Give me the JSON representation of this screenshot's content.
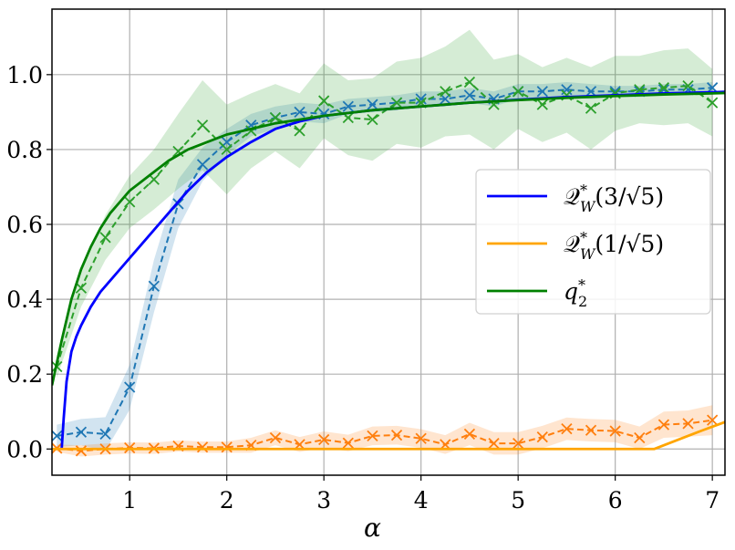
{
  "chart_data": {
    "type": "line",
    "title": "",
    "xlabel": "α",
    "ylabel": "",
    "xlim": [
      0.2,
      7.13
    ],
    "ylim": [
      -0.07,
      1.175
    ],
    "grid": true,
    "xticks": [
      1,
      2,
      3,
      4,
      5,
      6,
      7
    ],
    "xtick_labels": [
      "1",
      "2",
      "3",
      "4",
      "5",
      "6",
      "7"
    ],
    "yticks": [
      0.0,
      0.2,
      0.4,
      0.6,
      0.8,
      1.0
    ],
    "ytick_labels": [
      "0.0",
      "0.2",
      "0.4",
      "0.6",
      "0.8",
      "1.0"
    ],
    "legend_position": "center-right",
    "legend": [
      {
        "label": "Q*W(3/√5)",
        "main": "𝒬",
        "sup": "*",
        "sub": "W",
        "arg": "(3/√5)",
        "color": "#0000ff"
      },
      {
        "label": "Q*W(1/√5)",
        "main": "𝒬",
        "sup": "*",
        "sub": "W",
        "arg": "(1/√5)",
        "color": "#ffa500"
      },
      {
        "label": "q*2",
        "main": "q",
        "sup": "*",
        "sub": "2",
        "arg": "",
        "color": "#008000"
      }
    ],
    "theory_series": [
      {
        "name": "Q*W(3/√5)",
        "color": "#0000ff",
        "x": [
          0.3,
          0.32,
          0.35,
          0.4,
          0.45,
          0.5,
          0.6,
          0.7,
          0.8,
          0.9,
          1.0,
          1.2,
          1.4,
          1.6,
          1.8,
          2.0,
          2.25,
          2.5,
          2.75,
          3.0,
          3.5,
          4.0,
          4.5,
          5.0,
          5.5,
          6.0,
          6.5,
          7.0,
          7.13
        ],
        "y": [
          0.0,
          0.08,
          0.18,
          0.26,
          0.3,
          0.33,
          0.38,
          0.42,
          0.45,
          0.48,
          0.51,
          0.57,
          0.63,
          0.69,
          0.74,
          0.78,
          0.82,
          0.855,
          0.875,
          0.89,
          0.905,
          0.915,
          0.925,
          0.933,
          0.94,
          0.945,
          0.95,
          0.953,
          0.954
        ]
      },
      {
        "name": "Q*W(1/√5)",
        "color": "#ffa500",
        "x": [
          0.2,
          1.0,
          2.0,
          3.0,
          4.0,
          5.0,
          6.0,
          6.4,
          6.5,
          6.7,
          6.9,
          7.13
        ],
        "y": [
          0.0,
          0.0,
          0.0,
          0.0,
          0.0,
          0.0,
          0.0,
          0.0,
          0.01,
          0.03,
          0.05,
          0.072
        ]
      },
      {
        "name": "q*2",
        "color": "#008000",
        "x": [
          0.2,
          0.3,
          0.4,
          0.5,
          0.6,
          0.7,
          0.8,
          0.9,
          1.0,
          1.2,
          1.4,
          1.6,
          1.8,
          2.0,
          2.25,
          2.5,
          2.75,
          3.0,
          3.5,
          4.0,
          4.5,
          5.0,
          5.5,
          6.0,
          6.5,
          7.0,
          7.13
        ],
        "y": [
          0.17,
          0.29,
          0.4,
          0.48,
          0.54,
          0.59,
          0.63,
          0.66,
          0.69,
          0.73,
          0.77,
          0.8,
          0.82,
          0.84,
          0.855,
          0.87,
          0.88,
          0.89,
          0.905,
          0.915,
          0.925,
          0.932,
          0.938,
          0.943,
          0.947,
          0.95,
          0.951
        ]
      }
    ],
    "empirical_series": [
      {
        "name": "empirical Q_W(3/√5)",
        "color": "#1f77b4",
        "x": [
          0.25,
          0.5,
          0.75,
          1.0,
          1.25,
          1.5,
          1.75,
          2.0,
          2.25,
          2.5,
          2.75,
          3.0,
          3.25,
          3.5,
          3.75,
          4.0,
          4.25,
          4.5,
          4.75,
          5.0,
          5.25,
          5.5,
          5.75,
          6.0,
          6.25,
          6.5,
          6.75,
          7.0
        ],
        "y": [
          0.035,
          0.045,
          0.04,
          0.165,
          0.435,
          0.655,
          0.76,
          0.82,
          0.865,
          0.885,
          0.9,
          0.895,
          0.915,
          0.92,
          0.925,
          0.935,
          0.935,
          0.945,
          0.935,
          0.955,
          0.955,
          0.96,
          0.955,
          0.955,
          0.955,
          0.96,
          0.96,
          0.965
        ],
        "band": [
          0.03,
          0.035,
          0.045,
          0.06,
          0.07,
          0.065,
          0.045,
          0.035,
          0.03,
          0.03,
          0.025,
          0.025,
          0.02,
          0.02,
          0.02,
          0.02,
          0.02,
          0.02,
          0.02,
          0.02,
          0.02,
          0.02,
          0.02,
          0.015,
          0.015,
          0.015,
          0.015,
          0.015
        ]
      },
      {
        "name": "empirical Q_W(1/√5)",
        "color": "#ff7f0e",
        "x": [
          0.25,
          0.5,
          0.75,
          1.0,
          1.25,
          1.5,
          1.75,
          2.0,
          2.25,
          2.5,
          2.75,
          3.0,
          3.25,
          3.5,
          3.75,
          4.0,
          4.25,
          4.5,
          4.75,
          5.0,
          5.25,
          5.5,
          5.75,
          6.0,
          6.25,
          6.5,
          6.75,
          7.0
        ],
        "y": [
          0.002,
          -0.005,
          0.0,
          0.003,
          0.002,
          0.008,
          0.005,
          0.005,
          0.01,
          0.03,
          0.012,
          0.025,
          0.016,
          0.035,
          0.037,
          0.028,
          0.012,
          0.04,
          0.015,
          0.015,
          0.032,
          0.054,
          0.05,
          0.048,
          0.03,
          0.065,
          0.068,
          0.077
        ],
        "band": [
          0.01,
          0.015,
          0.015,
          0.015,
          0.015,
          0.015,
          0.015,
          0.015,
          0.02,
          0.02,
          0.02,
          0.022,
          0.022,
          0.025,
          0.025,
          0.025,
          0.025,
          0.03,
          0.03,
          0.03,
          0.03,
          0.03,
          0.03,
          0.03,
          0.03,
          0.035,
          0.035,
          0.04
        ]
      },
      {
        "name": "empirical q2",
        "color": "#2ca02c",
        "x": [
          0.25,
          0.5,
          0.75,
          1.0,
          1.25,
          1.5,
          1.75,
          2.0,
          2.25,
          2.5,
          2.75,
          3.0,
          3.25,
          3.5,
          3.75,
          4.0,
          4.25,
          4.5,
          4.75,
          5.0,
          5.25,
          5.5,
          5.75,
          6.0,
          6.25,
          6.5,
          6.75,
          7.0
        ],
        "y": [
          0.22,
          0.43,
          0.565,
          0.66,
          0.72,
          0.795,
          0.865,
          0.8,
          0.85,
          0.885,
          0.85,
          0.93,
          0.885,
          0.88,
          0.925,
          0.925,
          0.955,
          0.98,
          0.92,
          0.955,
          0.92,
          0.945,
          0.91,
          0.95,
          0.96,
          0.965,
          0.97,
          0.925
        ],
        "band": [
          0.03,
          0.05,
          0.06,
          0.07,
          0.08,
          0.1,
          0.12,
          0.12,
          0.1,
          0.09,
          0.1,
          0.1,
          0.1,
          0.11,
          0.11,
          0.12,
          0.12,
          0.14,
          0.12,
          0.1,
          0.1,
          0.1,
          0.11,
          0.1,
          0.09,
          0.1,
          0.1,
          0.09
        ]
      }
    ]
  }
}
